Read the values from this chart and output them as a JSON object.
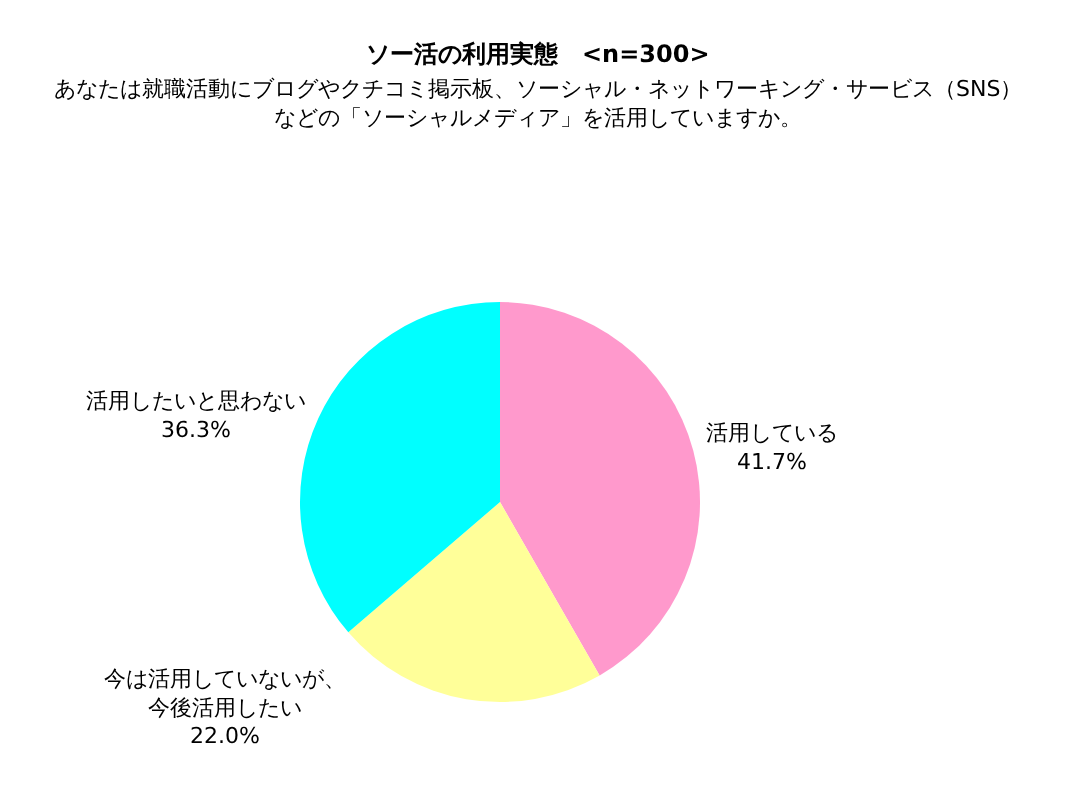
{
  "chart_data": {
    "type": "pie",
    "title": "ソー活の利用実態　<n=300>",
    "subtitle": "あなたは就職活動にブログやクチコミ掲示板、ソーシャル・ネットワーキング・サービス（SNS）などの「ソーシャルメディア」を活用していますか。",
    "categories": [
      "活用している",
      "今は活用していないが、今後活用したい",
      "活用したいと思わない"
    ],
    "values": [
      41.7,
      22.0,
      36.3
    ],
    "value_labels": [
      "41.7%",
      "22.0%",
      "36.3%"
    ],
    "colors": [
      "#ff99cc",
      "#ffff99",
      "#00ffff"
    ]
  }
}
